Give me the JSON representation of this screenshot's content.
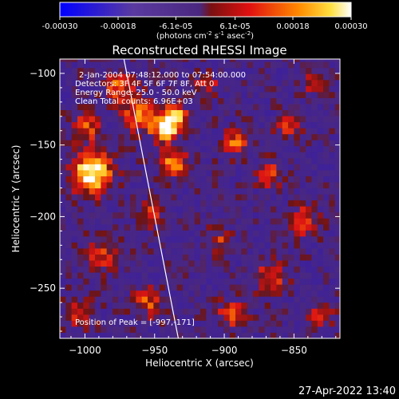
{
  "chart_data": {
    "type": "heatmap",
    "title": "Reconstructed RHESSI Image",
    "xlabel": "Heliocentric X (arcsec)",
    "ylabel": "Heliocentric Y (arcsec)",
    "xlim": [
      -1018,
      -817
    ],
    "ylim": [
      -285,
      -90
    ],
    "x_ticks": [
      -1000,
      -950,
      -900,
      -850
    ],
    "y_ticks": [
      -100,
      -150,
      -200,
      -250
    ],
    "colorbar": {
      "min": -0.0003,
      "max": 0.0003,
      "tick_values": [
        -0.0003,
        -0.00018,
        -6.1e-05,
        6.1e-05,
        0.00018,
        0.0003
      ],
      "tick_labels": [
        "-0.00030",
        "-0.00018",
        "-6.1e-05",
        "6.1e-05",
        "0.00018",
        "0.00030"
      ],
      "units_label": "(photons cm",
      "units_exp1": "-2",
      "units_mid": " s",
      "units_exp2": "-1",
      "units_end": " asec",
      "units_exp3": "-2",
      "units_close": ")"
    },
    "annotations": [
      "2-Jan-2004 07:48:12.000 to 07:54:00.000",
      "Detectors: 3F 4F 5F 6F 7F 8F, Att 0",
      "Energy Range: 25.0 - 50.0 keV",
      "Clean    Total counts: 6.96E+03"
    ],
    "peak_label": "Position of Peak = [-997,-171]",
    "peak": [
      -997,
      -171
    ],
    "limb_line": [
      [
        -972,
        -90
      ],
      [
        -933,
        -285
      ]
    ],
    "colors": {
      "background": "#000000",
      "neg_min": "#0000ff",
      "neg_mid": "#5a3aa0",
      "zero": "#4a2880",
      "pos_low": "#c81010",
      "pos_mid": "#ff8000",
      "pos_max": "#ffffff"
    }
  },
  "footer": {
    "timestamp": "27-Apr-2022 13:40"
  }
}
